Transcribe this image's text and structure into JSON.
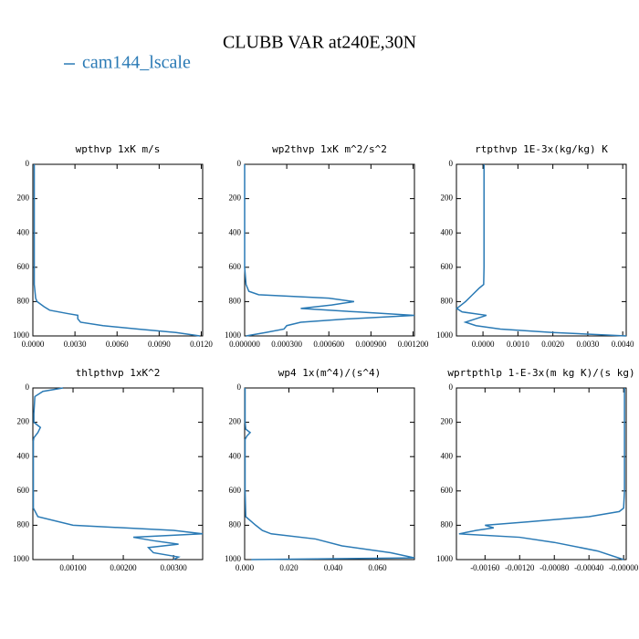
{
  "title": "CLUBB VAR at240E,30N",
  "legend": {
    "name": "cam144_lscale",
    "color": "#2a7ab5"
  },
  "chart_data": [
    {
      "type": "line",
      "title": "wpthvp   1xK m/s",
      "color": "#2a7ab5",
      "levels": [
        0,
        100,
        200,
        300,
        400,
        500,
        600,
        700,
        780,
        800,
        830,
        850,
        870,
        880,
        900,
        920,
        940,
        960,
        980,
        1000
      ],
      "values": [
        0.0001,
        0.0001,
        0.0001,
        0.0001,
        0.0001,
        0.0001,
        0.0001,
        0.0001,
        0.0002,
        0.0003,
        0.0008,
        0.0012,
        0.0025,
        0.0032,
        0.0032,
        0.0034,
        0.005,
        0.0075,
        0.0102,
        0.0119
      ],
      "xlim": [
        0,
        0.0121
      ],
      "xticks": [
        {
          "value": 0,
          "label": "0.0000"
        },
        {
          "value": 0.003,
          "label": "0.0030"
        },
        {
          "value": 0.006,
          "label": "0.0060"
        },
        {
          "value": 0.009,
          "label": "0.0090"
        },
        {
          "value": 0.012,
          "label": "0.0120"
        }
      ],
      "ylim": [
        1000,
        0
      ],
      "yticks": [
        0,
        200,
        400,
        600,
        800,
        1000
      ]
    },
    {
      "type": "line",
      "title": "wp2thvp   1xK m^2/s^2",
      "color": "#2a7ab5",
      "levels": [
        0,
        200,
        400,
        600,
        700,
        740,
        760,
        780,
        800,
        820,
        840,
        860,
        880,
        900,
        920,
        940,
        960,
        980,
        1000
      ],
      "values": [
        0,
        0,
        0,
        0,
        1e-05,
        3e-05,
        0.0001,
        0.0006,
        0.00078,
        0.00062,
        0.0004,
        0.0008,
        0.00121,
        0.00075,
        0.0004,
        0.0003,
        0.00028,
        0.00015,
        1e-05
      ],
      "xlim": [
        0,
        0.00121
      ],
      "xticks": [
        {
          "value": 0,
          "label": "0.000000"
        },
        {
          "value": 0.0003,
          "label": "0.000300"
        },
        {
          "value": 0.0006,
          "label": "0.000600"
        },
        {
          "value": 0.0009,
          "label": "0.000900"
        },
        {
          "value": 0.0012,
          "label": "0.001200"
        }
      ],
      "ylim": [
        1000,
        0
      ],
      "yticks": [
        0,
        200,
        400,
        600,
        800,
        1000
      ]
    },
    {
      "type": "line",
      "title": "rtpthvp   1E-3x(kg/kg) K",
      "color": "#2a7ab5",
      "levels": [
        0,
        200,
        400,
        600,
        700,
        720,
        760,
        800,
        840,
        860,
        880,
        900,
        920,
        940,
        960,
        980,
        1000
      ],
      "values": [
        3e-05,
        3e-05,
        3e-05,
        3e-05,
        2e-05,
        -0.0001,
        -0.0003,
        -0.0005,
        -0.00075,
        -0.0006,
        0.0001,
        -0.0002,
        -0.0005,
        -0.0002,
        0.0005,
        0.002,
        0.0041
      ],
      "xlim": [
        -0.00076,
        0.0041
      ],
      "xticks": [
        {
          "value": 0,
          "label": "0.0000"
        },
        {
          "value": 0.001,
          "label": "0.0010"
        },
        {
          "value": 0.002,
          "label": "0.0020"
        },
        {
          "value": 0.003,
          "label": "0.0030"
        },
        {
          "value": 0.004,
          "label": "0.0040"
        }
      ],
      "ylim": [
        1000,
        0
      ],
      "yticks": [
        0,
        200,
        400,
        600,
        800,
        1000
      ]
    },
    {
      "type": "line",
      "title": "thlpthvp   1xK^2",
      "color": "#2a7ab5",
      "levels": [
        0,
        20,
        50,
        100,
        150,
        200,
        230,
        260,
        290,
        310,
        400,
        600,
        700,
        750,
        800,
        830,
        850,
        870,
        890,
        910,
        930,
        960,
        985,
        1000
      ],
      "values": [
        0.0008,
        0.0004,
        0.00024,
        0.00023,
        0.00022,
        0.00022,
        0.00035,
        0.0003,
        0.00022,
        0.00021,
        0.00021,
        0.00021,
        0.00021,
        0.0003,
        0.001,
        0.003,
        0.00358,
        0.0022,
        0.0026,
        0.0031,
        0.0025,
        0.0026,
        0.0031,
        0.003
      ],
      "xlim": [
        0.0002,
        0.00358
      ],
      "xticks": [
        {
          "value": 0.001,
          "label": "0.00100"
        },
        {
          "value": 0.002,
          "label": "0.00200"
        },
        {
          "value": 0.003,
          "label": "0.00300"
        }
      ],
      "ylim": [
        1000,
        0
      ],
      "yticks": [
        0,
        200,
        400,
        600,
        800,
        1000
      ]
    },
    {
      "type": "line",
      "title": "wp4   1x(m^4)/(s^4)",
      "color": "#2a7ab5",
      "levels": [
        0,
        200,
        240,
        260,
        280,
        300,
        400,
        600,
        750,
        800,
        830,
        850,
        880,
        920,
        960,
        990,
        1000
      ],
      "values": [
        0.0002,
        0.0002,
        0.0005,
        0.0025,
        0.001,
        0.0002,
        0.0002,
        0.0002,
        0.0005,
        0.005,
        0.008,
        0.012,
        0.032,
        0.044,
        0.066,
        0.0767,
        0.003
      ],
      "xlim": [
        0,
        0.0767
      ],
      "xticks": [
        {
          "value": 0,
          "label": "0.000"
        },
        {
          "value": 0.02,
          "label": "0.020"
        },
        {
          "value": 0.04,
          "label": "0.040"
        },
        {
          "value": 0.06,
          "label": "0.060"
        }
      ],
      "ylim": [
        1000,
        0
      ],
      "yticks": [
        0,
        200,
        400,
        600,
        800,
        1000
      ]
    },
    {
      "type": "line",
      "title": "wprtpthlp   1-E-3x(m kg K)/(s kg)",
      "color": "#2a7ab5",
      "levels": [
        0,
        200,
        400,
        600,
        700,
        720,
        750,
        780,
        800,
        815,
        830,
        850,
        870,
        900,
        950,
        1000
      ],
      "values": [
        1e-05,
        1e-05,
        1e-05,
        1e-05,
        0,
        -5e-05,
        -0.0004,
        -0.0011,
        -0.0016,
        -0.0015,
        -0.0017,
        -0.0019,
        -0.0012,
        -0.0008,
        -0.0003,
        0
      ],
      "xlim": [
        -0.00193,
        3e-05
      ],
      "xticks": [
        {
          "value": -0.0016,
          "label": "-0.00160"
        },
        {
          "value": -0.0012,
          "label": "-0.00120"
        },
        {
          "value": -0.0008,
          "label": "-0.00080"
        },
        {
          "value": -0.0004,
          "label": "-0.00040"
        },
        {
          "value": 0,
          "label": "-0.00000"
        }
      ],
      "ylim": [
        1000,
        0
      ],
      "yticks": [
        0,
        200,
        400,
        600,
        800,
        1000
      ]
    }
  ]
}
